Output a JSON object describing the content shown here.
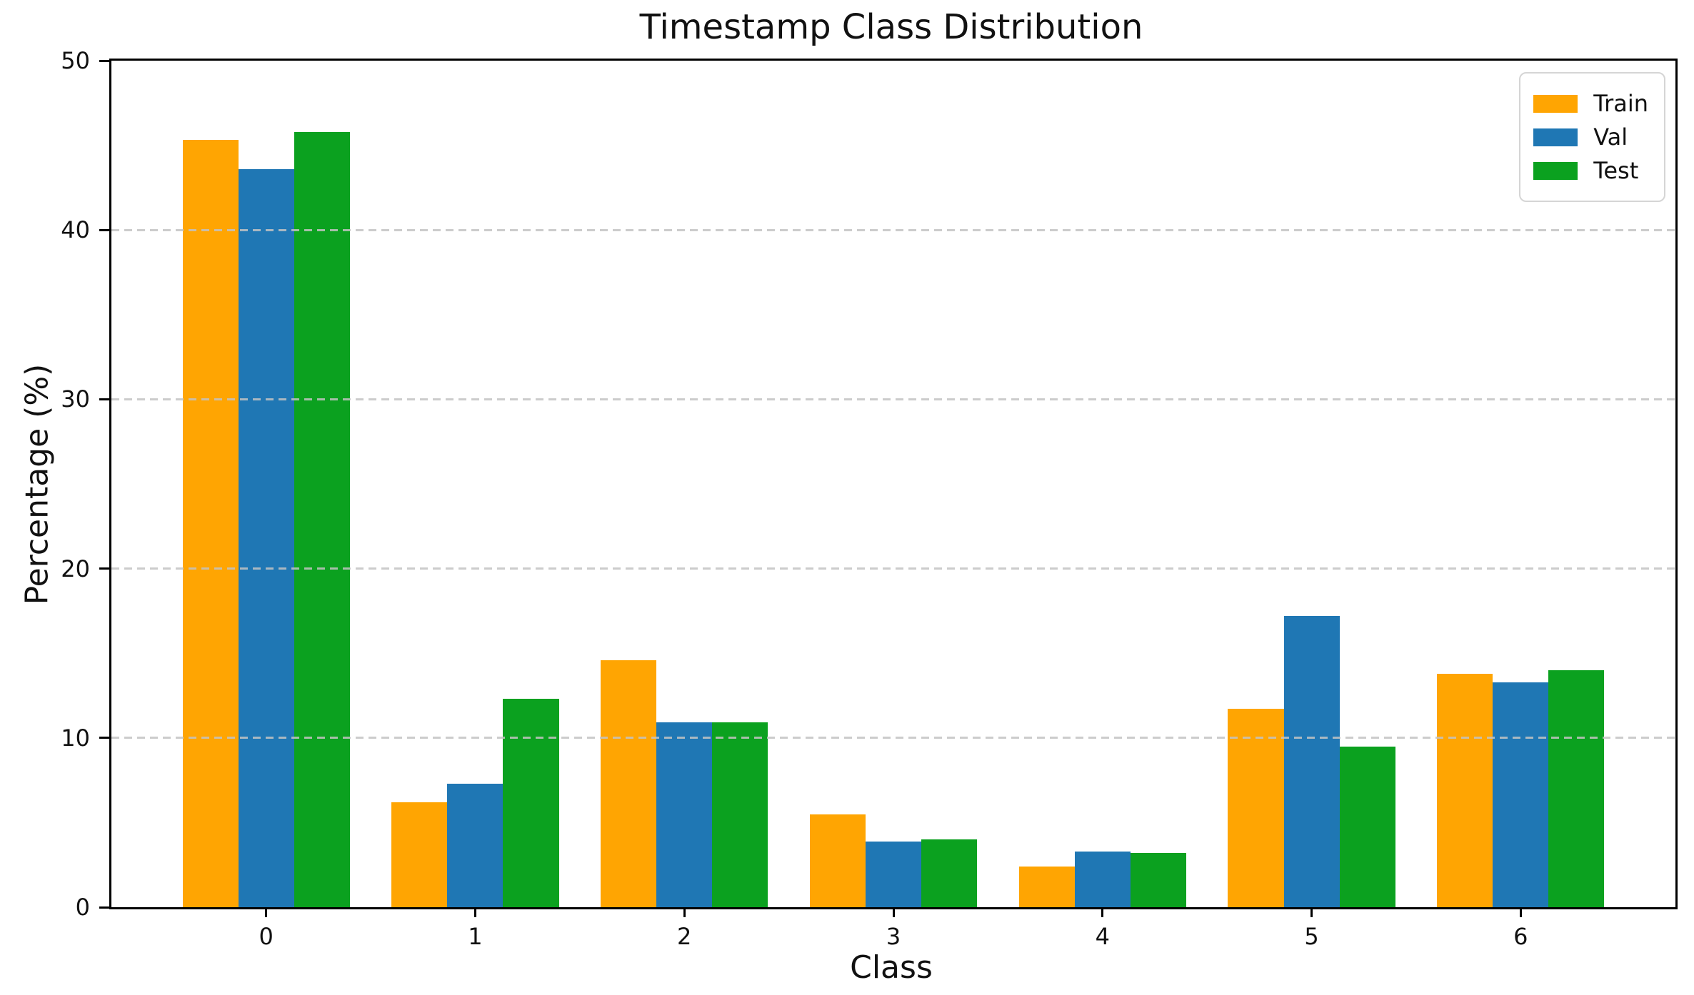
{
  "chart_data": {
    "type": "bar",
    "title": "Timestamp Class Distribution",
    "xlabel": "Class",
    "ylabel": "Percentage (%)",
    "categories": [
      "0",
      "1",
      "2",
      "3",
      "4",
      "5",
      "6"
    ],
    "series": [
      {
        "name": "Train",
        "color": "#ffa502",
        "values": [
          45.3,
          6.2,
          14.6,
          5.5,
          2.4,
          11.7,
          13.8
        ]
      },
      {
        "name": "Val",
        "color": "#1f77b4",
        "values": [
          43.6,
          7.3,
          10.9,
          3.9,
          3.3,
          17.2,
          13.3
        ]
      },
      {
        "name": "Test",
        "color": "#0ba11f",
        "values": [
          45.8,
          12.3,
          10.9,
          4.0,
          3.2,
          9.5,
          14.0
        ]
      }
    ],
    "ylim": [
      0,
      50
    ],
    "yticks": [
      0,
      10,
      20,
      30,
      40,
      50
    ],
    "xlim": [
      -0.74,
      6.74
    ],
    "bar_group_width": 0.8,
    "grid": "horizontal-dashed-on-top",
    "legend_position": "upper-right",
    "legend_labels": [
      "Train",
      "Val",
      "Test"
    ]
  }
}
